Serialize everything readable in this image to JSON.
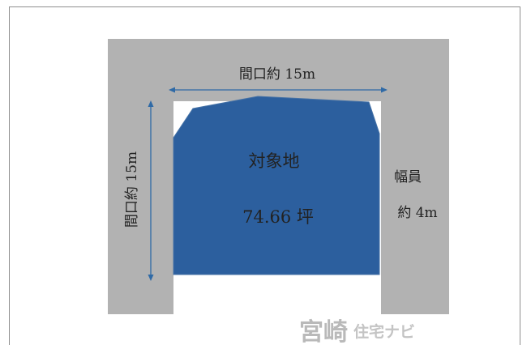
{
  "labels": {
    "frontage_top": "間口約 15m",
    "frontage_left": "間口約 15m",
    "road_width_label": "幅員",
    "road_width_value": "約 4m",
    "lot_name": "対象地",
    "lot_area": "74.66 坪"
  },
  "watermark": {
    "main": "宮崎",
    "sub": "住宅ナビ"
  },
  "colors": {
    "road": "#b2b2b2",
    "lot": "#2c5f9e",
    "lot_stroke": "#4672a6",
    "arrow": "#2f6aa6"
  }
}
